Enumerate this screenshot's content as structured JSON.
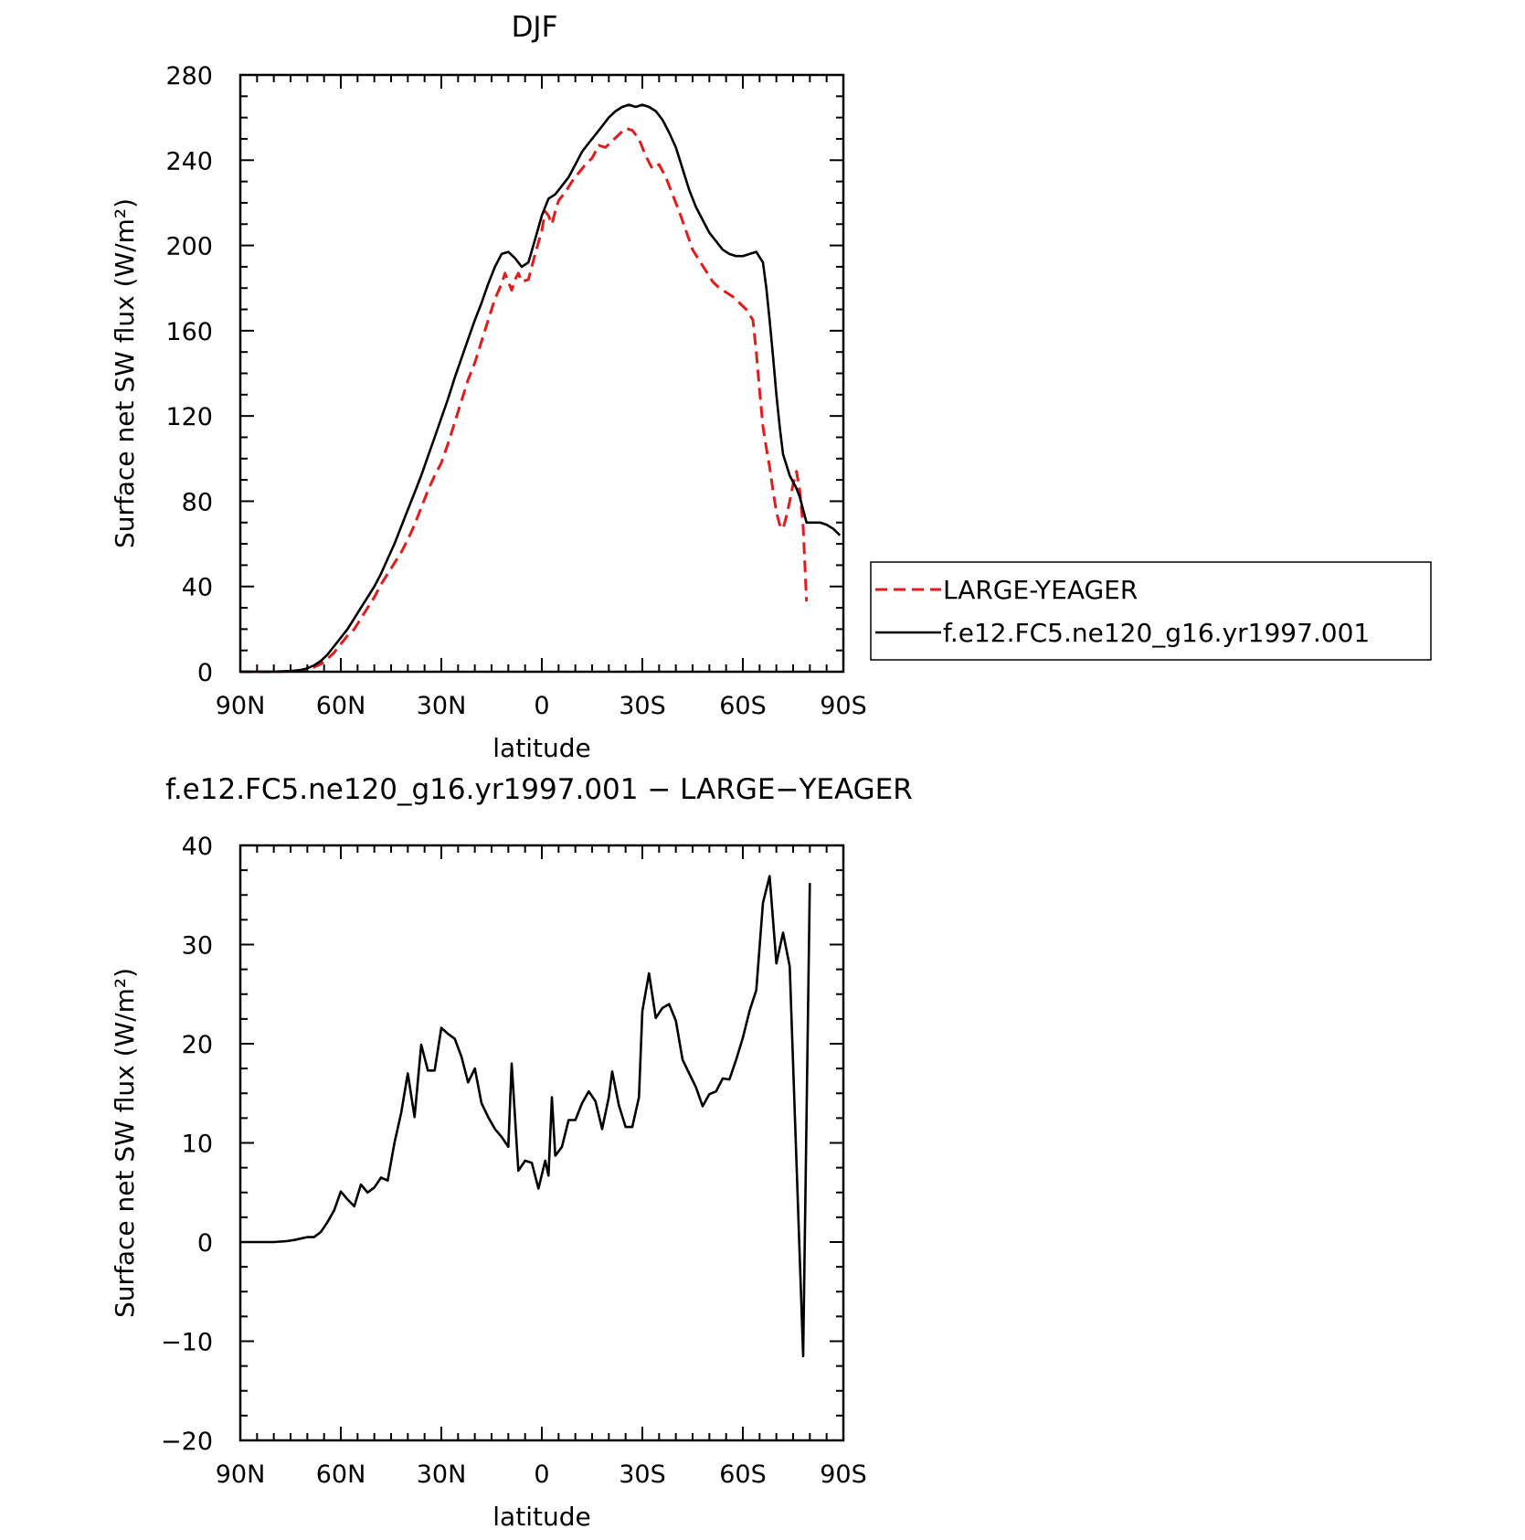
{
  "chart_data": [
    {
      "type": "line",
      "title": "DJF",
      "xlabel": "latitude",
      "ylabel": "Surface net SW flux (W/m²)",
      "xlim": [
        90,
        -90
      ],
      "ylim": [
        0,
        280
      ],
      "xticks": [
        90,
        60,
        30,
        0,
        -30,
        -60,
        -90
      ],
      "xtick_labels": [
        "90N",
        "60N",
        "30N",
        "0",
        "30S",
        "60S",
        "90S"
      ],
      "yticks": [
        0,
        40,
        80,
        120,
        160,
        200,
        240,
        280
      ],
      "ytick_labels": [
        "0",
        "40",
        "80",
        "120",
        "160",
        "200",
        "240",
        "280"
      ],
      "legend_position": "right",
      "series": [
        {
          "name": "LARGE-YEAGER",
          "color": "#e41a1c",
          "dash": true,
          "points": [
            [
              90,
              0
            ],
            [
              85,
              0
            ],
            [
              80,
              0
            ],
            [
              75,
              0.2
            ],
            [
              72,
              0.6
            ],
            [
              70,
              1.2
            ],
            [
              68,
              2.2
            ],
            [
              66,
              3.5
            ],
            [
              64,
              6
            ],
            [
              62,
              9
            ],
            [
              60,
              13
            ],
            [
              58,
              17
            ],
            [
              56,
              20
            ],
            [
              54,
              25
            ],
            [
              52,
              30
            ],
            [
              50,
              35
            ],
            [
              48,
              41
            ],
            [
              46,
              46
            ],
            [
              44,
              51
            ],
            [
              42,
              56
            ],
            [
              40,
              62
            ],
            [
              38,
              69
            ],
            [
              36,
              77
            ],
            [
              34,
              85
            ],
            [
              32,
              92
            ],
            [
              30,
              98
            ],
            [
              28,
              107
            ],
            [
              26,
              117
            ],
            [
              24,
              127
            ],
            [
              22,
              137
            ],
            [
              20,
              145
            ],
            [
              18,
              155
            ],
            [
              16,
              165
            ],
            [
              14,
              175
            ],
            [
              12,
              182
            ],
            [
              11,
              187
            ],
            [
              10,
              183
            ],
            [
              9,
              179
            ],
            [
              8,
              184
            ],
            [
              7,
              187
            ],
            [
              6,
              183
            ],
            [
              4,
              184
            ],
            [
              2,
              196
            ],
            [
              0,
              207
            ],
            [
              -1,
              216
            ],
            [
              -2,
              214
            ],
            [
              -3,
              210
            ],
            [
              -4,
              216
            ],
            [
              -5,
              221
            ],
            [
              -7,
              225
            ],
            [
              -9,
              230
            ],
            [
              -11,
              234
            ],
            [
              -13,
              238
            ],
            [
              -15,
              241
            ],
            [
              -17,
              247
            ],
            [
              -19,
              246
            ],
            [
              -21,
              249
            ],
            [
              -23,
              252
            ],
            [
              -25,
              255
            ],
            [
              -27,
              254
            ],
            [
              -29,
              250
            ],
            [
              -31,
              242
            ],
            [
              -33,
              236
            ],
            [
              -35,
              238
            ],
            [
              -37,
              232
            ],
            [
              -39,
              224
            ],
            [
              -41,
              216
            ],
            [
              -43,
              207
            ],
            [
              -45,
              198
            ],
            [
              -47,
              193
            ],
            [
              -49,
              188
            ],
            [
              -51,
              183
            ],
            [
              -53,
              180
            ],
            [
              -55,
              178
            ],
            [
              -57,
              176
            ],
            [
              -59,
              173
            ],
            [
              -61,
              170
            ],
            [
              -63,
              165
            ],
            [
              -64,
              150
            ],
            [
              -65,
              132
            ],
            [
              -66,
              115
            ],
            [
              -67,
              105
            ],
            [
              -68,
              96
            ],
            [
              -69,
              85
            ],
            [
              -70,
              75
            ],
            [
              -71,
              69
            ],
            [
              -72,
              67
            ],
            [
              -73,
              73
            ],
            [
              -74,
              80
            ],
            [
              -75,
              88
            ],
            [
              -76,
              94
            ],
            [
              -77,
              85
            ],
            [
              -78,
              68
            ],
            [
              -79,
              33
            ]
          ]
        },
        {
          "name": "f.e12.FC5.ne120_g16.yr1997.001",
          "color": "#000000",
          "dash": false,
          "points": [
            [
              90,
              0
            ],
            [
              85,
              0
            ],
            [
              80,
              0
            ],
            [
              75,
              0.3
            ],
            [
              72,
              0.8
            ],
            [
              70,
              1.6
            ],
            [
              68,
              3
            ],
            [
              66,
              5
            ],
            [
              64,
              8
            ],
            [
              62,
              12
            ],
            [
              60,
              16
            ],
            [
              58,
              20
            ],
            [
              56,
              25
            ],
            [
              54,
              30
            ],
            [
              52,
              35
            ],
            [
              50,
              40
            ],
            [
              48,
              46
            ],
            [
              46,
              53
            ],
            [
              44,
              60
            ],
            [
              42,
              68
            ],
            [
              40,
              76
            ],
            [
              38,
              84
            ],
            [
              36,
              92
            ],
            [
              34,
              101
            ],
            [
              32,
              110
            ],
            [
              30,
              119
            ],
            [
              28,
              128
            ],
            [
              26,
              138
            ],
            [
              24,
              147
            ],
            [
              22,
              156
            ],
            [
              20,
              165
            ],
            [
              18,
              173
            ],
            [
              16,
              182
            ],
            [
              14,
              190
            ],
            [
              12,
              196
            ],
            [
              10,
              197
            ],
            [
              8,
              194
            ],
            [
              6,
              190
            ],
            [
              4,
              192
            ],
            [
              2,
              203
            ],
            [
              0,
              214
            ],
            [
              -2,
              222
            ],
            [
              -4,
              224
            ],
            [
              -6,
              228
            ],
            [
              -8,
              232
            ],
            [
              -10,
              238
            ],
            [
              -12,
              244
            ],
            [
              -14,
              248
            ],
            [
              -16,
              252
            ],
            [
              -18,
              256
            ],
            [
              -20,
              260
            ],
            [
              -22,
              263
            ],
            [
              -24,
              265
            ],
            [
              -26,
              266
            ],
            [
              -28,
              265
            ],
            [
              -30,
              266
            ],
            [
              -32,
              265
            ],
            [
              -34,
              263
            ],
            [
              -36,
              259
            ],
            [
              -38,
              253
            ],
            [
              -40,
              246
            ],
            [
              -42,
              236
            ],
            [
              -44,
              226
            ],
            [
              -46,
              218
            ],
            [
              -48,
              212
            ],
            [
              -50,
              206
            ],
            [
              -52,
              202
            ],
            [
              -54,
              198
            ],
            [
              -56,
              196
            ],
            [
              -58,
              195
            ],
            [
              -60,
              195
            ],
            [
              -62,
              196
            ],
            [
              -64,
              197
            ],
            [
              -66,
              192
            ],
            [
              -67,
              180
            ],
            [
              -68,
              165
            ],
            [
              -69,
              148
            ],
            [
              -70,
              130
            ],
            [
              -71,
              115
            ],
            [
              -72,
              102
            ],
            [
              -73,
              97
            ],
            [
              -74,
              92
            ],
            [
              -75,
              89
            ],
            [
              -76,
              86
            ],
            [
              -77,
              82
            ],
            [
              -78,
              76
            ],
            [
              -79,
              70
            ],
            [
              -81,
              70
            ],
            [
              -83,
              70
            ],
            [
              -85,
              69
            ],
            [
              -87,
              67
            ],
            [
              -89,
              64
            ]
          ]
        }
      ]
    },
    {
      "type": "line",
      "title": "f.e12.FC5.ne120_g16.yr1997.001 − LARGE−YEAGER",
      "xlabel": "latitude",
      "ylabel": "Surface net SW flux (W/m²)",
      "xlim": [
        90,
        -90
      ],
      "ylim": [
        -20,
        40
      ],
      "xticks": [
        90,
        60,
        30,
        0,
        -30,
        -60,
        -90
      ],
      "xtick_labels": [
        "90N",
        "60N",
        "30N",
        "0",
        "30S",
        "60S",
        "90S"
      ],
      "yticks": [
        -20,
        -10,
        0,
        10,
        20,
        30,
        40
      ],
      "ytick_labels": [
        "−20",
        "−10",
        "0",
        "10",
        "20",
        "30",
        "40"
      ],
      "series": [
        {
          "color": "#000000",
          "dash": false,
          "points": [
            [
              90,
              0
            ],
            [
              85,
              0
            ],
            [
              80,
              0
            ],
            [
              78,
              0.05
            ],
            [
              76,
              0.1
            ],
            [
              74,
              0.2
            ],
            [
              72,
              0.35
            ],
            [
              70,
              0.5
            ],
            [
              68,
              0.5
            ],
            [
              66,
              1
            ],
            [
              64,
              2
            ],
            [
              62,
              3.2
            ],
            [
              60,
              5.1
            ],
            [
              58,
              4.3
            ],
            [
              56,
              3.6
            ],
            [
              54,
              5.8
            ],
            [
              52,
              5
            ],
            [
              50,
              5.5
            ],
            [
              48,
              6.5
            ],
            [
              46,
              6.2
            ],
            [
              44,
              10
            ],
            [
              42,
              13
            ],
            [
              40,
              17
            ],
            [
              38,
              12.6
            ],
            [
              36,
              19.9
            ],
            [
              34,
              17.3
            ],
            [
              32,
              17.3
            ],
            [
              30,
              21.6
            ],
            [
              28,
              21
            ],
            [
              26,
              20.5
            ],
            [
              24,
              18.7
            ],
            [
              22,
              16.1
            ],
            [
              20,
              17.5
            ],
            [
              18,
              14
            ],
            [
              16,
              12.6
            ],
            [
              14,
              11.4
            ],
            [
              12,
              10.6
            ],
            [
              10,
              9.6
            ],
            [
              9,
              18
            ],
            [
              7,
              7.2
            ],
            [
              5,
              8.2
            ],
            [
              3,
              8
            ],
            [
              1,
              5.4
            ],
            [
              -1,
              8.2
            ],
            [
              -2,
              6.7
            ],
            [
              -3,
              14.6
            ],
            [
              -4,
              8.7
            ],
            [
              -6,
              9.6
            ],
            [
              -8,
              12.3
            ],
            [
              -10,
              12.3
            ],
            [
              -12,
              14
            ],
            [
              -14,
              15.2
            ],
            [
              -16,
              14.2
            ],
            [
              -18,
              11.4
            ],
            [
              -20,
              14.6
            ],
            [
              -21,
              17.2
            ],
            [
              -23,
              13.8
            ],
            [
              -25,
              11.6
            ],
            [
              -27,
              11.6
            ],
            [
              -29,
              14.6
            ],
            [
              -30,
              23.3
            ],
            [
              -32,
              27.1
            ],
            [
              -34,
              22.6
            ],
            [
              -36,
              23.6
            ],
            [
              -38,
              24
            ],
            [
              -40,
              22.3
            ],
            [
              -42,
              18.4
            ],
            [
              -44,
              17
            ],
            [
              -46,
              15.6
            ],
            [
              -48,
              13.7
            ],
            [
              -50,
              14.9
            ],
            [
              -52,
              15.2
            ],
            [
              -54,
              16.5
            ],
            [
              -56,
              16.4
            ],
            [
              -58,
              18.4
            ],
            [
              -60,
              20.6
            ],
            [
              -62,
              23.3
            ],
            [
              -64,
              25.4
            ],
            [
              -66,
              34.2
            ],
            [
              -68,
              36.9
            ],
            [
              -70,
              28.1
            ],
            [
              -72,
              31.2
            ],
            [
              -74,
              27.8
            ],
            [
              -78,
              -11.5
            ],
            [
              -80,
              36.2
            ]
          ]
        }
      ]
    }
  ],
  "legend": {
    "items": [
      {
        "label": "LARGE-YEAGER",
        "color": "#e41a1c",
        "dash": true
      },
      {
        "label": "f.e12.FC5.ne120_g16.yr1997.001",
        "color": "#000000",
        "dash": false
      }
    ]
  }
}
